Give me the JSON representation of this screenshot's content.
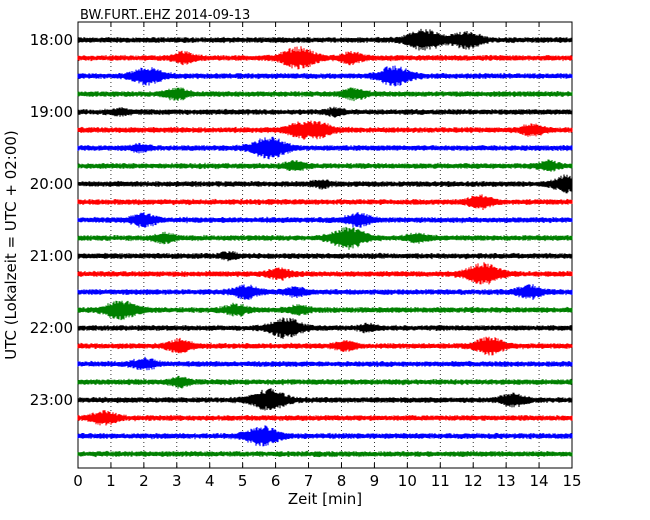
{
  "chart_data": {
    "type": "line",
    "title": "BW.FURT..EHZ 2014-09-13",
    "xlabel": "Zeit  [min]",
    "ylabel": "UTC (Lokalzeit = UTC + 02:00)",
    "xlim": [
      0,
      15
    ],
    "x_ticks": [
      "0",
      "1",
      "2",
      "3",
      "4",
      "5",
      "6",
      "7",
      "8",
      "9",
      "10",
      "11",
      "12",
      "13",
      "14",
      "15"
    ],
    "y_ticks": [
      "18:00",
      "19:00",
      "20:00",
      "21:00",
      "22:00",
      "23:00"
    ],
    "grid": "vertical dotted",
    "series_colors": [
      "#000000",
      "#ff0000",
      "#0000ff",
      "#008000"
    ],
    "traces": [
      {
        "start": "18:00",
        "color": "#000000",
        "bursts": [
          [
            10.5,
            1.0
          ],
          [
            11.8,
            0.8
          ]
        ]
      },
      {
        "start": "18:15",
        "color": "#ff0000",
        "bursts": [
          [
            3.2,
            0.5
          ],
          [
            6.7,
            1.0
          ],
          [
            8.3,
            0.5
          ]
        ]
      },
      {
        "start": "18:30",
        "color": "#0000ff",
        "bursts": [
          [
            2.1,
            0.8
          ],
          [
            9.6,
            0.9
          ]
        ]
      },
      {
        "start": "18:45",
        "color": "#008000",
        "bursts": [
          [
            3.0,
            0.5
          ],
          [
            8.4,
            0.5
          ]
        ]
      },
      {
        "start": "19:00",
        "color": "#000000",
        "bursts": [
          [
            1.3,
            0.3
          ],
          [
            7.8,
            0.3
          ]
        ]
      },
      {
        "start": "19:15",
        "color": "#ff0000",
        "bursts": [
          [
            6.7,
            0.6
          ],
          [
            7.3,
            0.7
          ],
          [
            13.8,
            0.5
          ]
        ]
      },
      {
        "start": "19:30",
        "color": "#0000ff",
        "bursts": [
          [
            5.8,
            1.0
          ],
          [
            1.9,
            0.3
          ]
        ]
      },
      {
        "start": "19:45",
        "color": "#008000",
        "bursts": [
          [
            6.6,
            0.4
          ],
          [
            14.3,
            0.4
          ]
        ]
      },
      {
        "start": "20:00",
        "color": "#000000",
        "bursts": [
          [
            7.4,
            0.3
          ],
          [
            14.9,
            0.8
          ]
        ]
      },
      {
        "start": "20:15",
        "color": "#ff0000",
        "bursts": [
          [
            12.2,
            0.6
          ]
        ]
      },
      {
        "start": "20:30",
        "color": "#0000ff",
        "bursts": [
          [
            2.0,
            0.6
          ],
          [
            8.5,
            0.6
          ]
        ]
      },
      {
        "start": "20:45",
        "color": "#008000",
        "bursts": [
          [
            8.2,
            1.0
          ],
          [
            2.6,
            0.4
          ],
          [
            10.3,
            0.4
          ]
        ]
      },
      {
        "start": "21:00",
        "color": "#000000",
        "bursts": [
          [
            4.6,
            0.3
          ]
        ]
      },
      {
        "start": "21:15",
        "color": "#ff0000",
        "bursts": [
          [
            12.3,
            1.0
          ],
          [
            6.1,
            0.5
          ]
        ]
      },
      {
        "start": "21:30",
        "color": "#0000ff",
        "bursts": [
          [
            5.1,
            0.6
          ],
          [
            13.7,
            0.6
          ],
          [
            6.6,
            0.4
          ]
        ]
      },
      {
        "start": "21:45",
        "color": "#008000",
        "bursts": [
          [
            1.3,
            0.9
          ],
          [
            4.8,
            0.5
          ],
          [
            6.7,
            0.4
          ]
        ]
      },
      {
        "start": "22:00",
        "color": "#000000",
        "bursts": [
          [
            6.3,
            0.9
          ],
          [
            8.8,
            0.3
          ]
        ]
      },
      {
        "start": "22:15",
        "color": "#ff0000",
        "bursts": [
          [
            3.1,
            0.6
          ],
          [
            12.5,
            0.8
          ],
          [
            8.1,
            0.4
          ]
        ]
      },
      {
        "start": "22:30",
        "color": "#0000ff",
        "bursts": [
          [
            2.0,
            0.5
          ]
        ]
      },
      {
        "start": "22:45",
        "color": "#008000",
        "bursts": [
          [
            3.1,
            0.4
          ]
        ]
      },
      {
        "start": "23:00",
        "color": "#000000",
        "bursts": [
          [
            5.8,
            1.0
          ],
          [
            13.2,
            0.6
          ]
        ]
      },
      {
        "start": "23:15",
        "color": "#ff0000",
        "bursts": [
          [
            0.8,
            0.6
          ]
        ]
      },
      {
        "start": "23:30",
        "color": "#0000ff",
        "bursts": [
          [
            5.6,
            0.9
          ]
        ]
      },
      {
        "start": "23:45",
        "color": "#008000",
        "bursts": []
      }
    ]
  }
}
